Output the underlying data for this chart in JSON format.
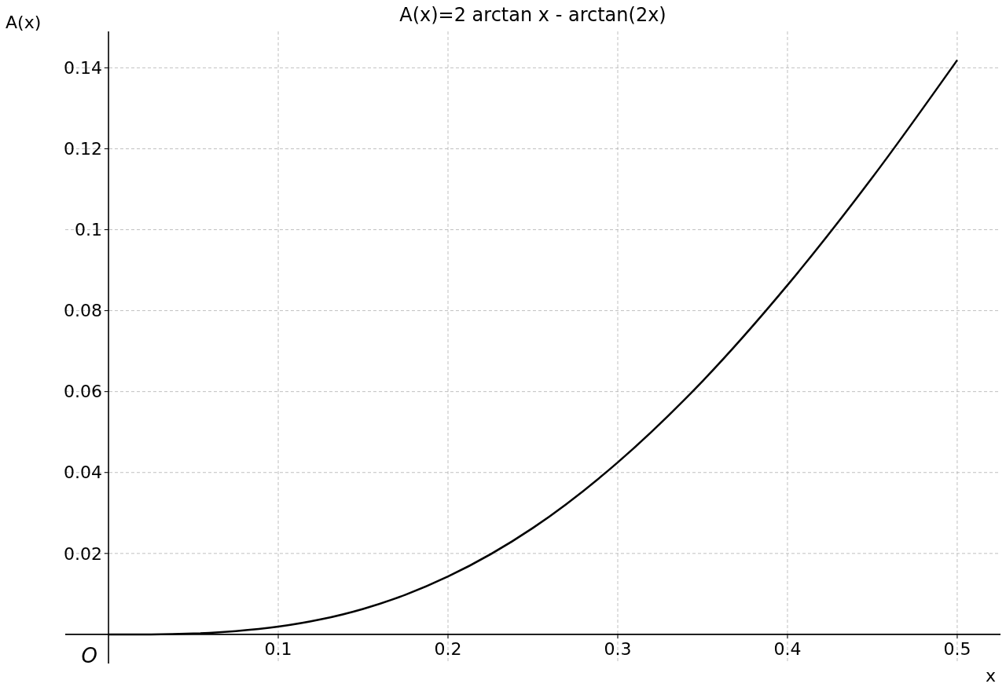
{
  "chart_data": {
    "type": "line",
    "title": "A(x)=2 arctan x - arctan(2x)",
    "xlabel": "x",
    "ylabel": "A(x)",
    "x": [
      0,
      0.025,
      0.05,
      0.075,
      0.1,
      0.125,
      0.15,
      0.175,
      0.2,
      0.25,
      0.3,
      0.35,
      0.4,
      0.45,
      0.5
    ],
    "series": [
      {
        "color": "#000000",
        "values": [
          0,
          0.0,
          0.0002,
          0.0008,
          0.0019,
          0.0037,
          0.0063,
          0.0098,
          0.0143,
          0.0263,
          0.0425,
          0.0626,
          0.0863,
          0.1129,
          0.1419
        ]
      }
    ],
    "xlim": [
      -0.0255,
      0.5255
    ],
    "ylim": [
      -0.0072,
      0.149
    ],
    "xticks": [
      0.1,
      0.2,
      0.3,
      0.4,
      0.5
    ],
    "yticks": [
      0.02,
      0.04,
      0.06,
      0.08,
      0.1,
      0.12,
      0.14
    ],
    "grid": true,
    "line_style": "solid",
    "marker": "none",
    "annotations": [
      {
        "text": "O",
        "x": 0,
        "y": 0
      }
    ]
  }
}
